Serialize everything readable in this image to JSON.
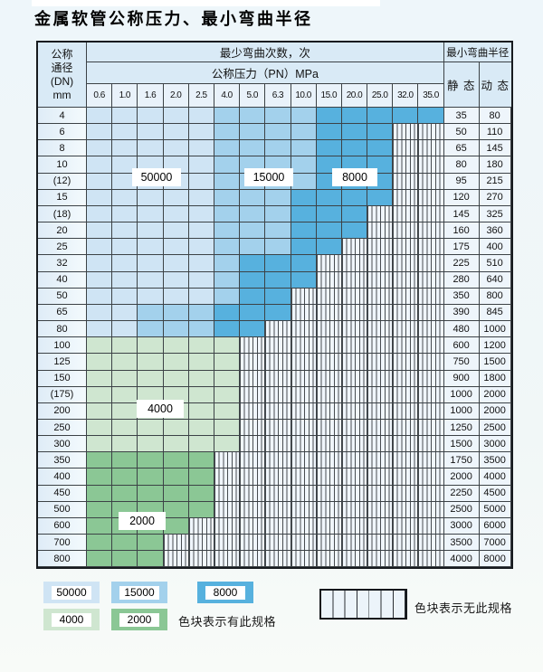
{
  "title": "金属软管公称压力、最小弯曲半径",
  "table": {
    "header": {
      "dn_lines": [
        "公称",
        "通径",
        "(DN)",
        "mm"
      ],
      "cycles": "最少弯曲次数，次",
      "pn": "公称压力（PN）MPa",
      "radius": "最小弯曲半径",
      "static": "静 态",
      "dynamic": "动 态",
      "pressures": [
        "0.6",
        "1.0",
        "1.6",
        "2.0",
        "2.5",
        "4.0",
        "5.0",
        "6.3",
        "10.0",
        "15.0",
        "20.0",
        "25.0",
        "32.0",
        "35.0"
      ]
    },
    "rows": [
      {
        "dn": "4",
        "spans": [
          [
            "50000",
            5
          ],
          [
            "15000",
            4
          ],
          [
            "8000",
            5
          ]
        ],
        "static": "35",
        "dynamic": "80"
      },
      {
        "dn": "6",
        "spans": [
          [
            "50000",
            5
          ],
          [
            "15000",
            4
          ],
          [
            "8000",
            3
          ],
          [
            "none",
            2
          ]
        ],
        "static": "50",
        "dynamic": "110"
      },
      {
        "dn": "8",
        "spans": [
          [
            "50000",
            5
          ],
          [
            "15000",
            4
          ],
          [
            "8000",
            3
          ],
          [
            "none",
            2
          ]
        ],
        "static": "65",
        "dynamic": "145"
      },
      {
        "dn": "10",
        "spans": [
          [
            "50000",
            5
          ],
          [
            "15000",
            4
          ],
          [
            "8000",
            3
          ],
          [
            "none",
            2
          ]
        ],
        "static": "80",
        "dynamic": "180"
      },
      {
        "dn": "(12)",
        "spans": [
          [
            "50000",
            5
          ],
          [
            "15000",
            4
          ],
          [
            "8000",
            3
          ],
          [
            "none",
            2
          ]
        ],
        "static": "95",
        "dynamic": "215"
      },
      {
        "dn": "15",
        "spans": [
          [
            "50000",
            5
          ],
          [
            "15000",
            3
          ],
          [
            "8000",
            4
          ],
          [
            "none",
            2
          ]
        ],
        "static": "120",
        "dynamic": "270"
      },
      {
        "dn": "(18)",
        "spans": [
          [
            "50000",
            5
          ],
          [
            "15000",
            3
          ],
          [
            "8000",
            3
          ],
          [
            "none",
            3
          ]
        ],
        "static": "145",
        "dynamic": "325"
      },
      {
        "dn": "20",
        "spans": [
          [
            "50000",
            5
          ],
          [
            "15000",
            3
          ],
          [
            "8000",
            3
          ],
          [
            "none",
            3
          ]
        ],
        "static": "160",
        "dynamic": "360"
      },
      {
        "dn": "25",
        "spans": [
          [
            "50000",
            5
          ],
          [
            "15000",
            3
          ],
          [
            "8000",
            2
          ],
          [
            "none",
            4
          ]
        ],
        "static": "175",
        "dynamic": "400"
      },
      {
        "dn": "32",
        "spans": [
          [
            "50000",
            5
          ],
          [
            "15000",
            1
          ],
          [
            "8000",
            3
          ],
          [
            "none",
            5
          ]
        ],
        "static": "225",
        "dynamic": "510"
      },
      {
        "dn": "40",
        "spans": [
          [
            "50000",
            5
          ],
          [
            "15000",
            1
          ],
          [
            "8000",
            3
          ],
          [
            "none",
            5
          ]
        ],
        "static": "280",
        "dynamic": "640"
      },
      {
        "dn": "50",
        "spans": [
          [
            "50000",
            5
          ],
          [
            "15000",
            1
          ],
          [
            "8000",
            2
          ],
          [
            "none",
            6
          ]
        ],
        "static": "350",
        "dynamic": "800"
      },
      {
        "dn": "65",
        "spans": [
          [
            "50000",
            2
          ],
          [
            "15000",
            3
          ],
          [
            "8000",
            3
          ],
          [
            "none",
            6
          ]
        ],
        "static": "390",
        "dynamic": "845"
      },
      {
        "dn": "80",
        "spans": [
          [
            "50000",
            2
          ],
          [
            "15000",
            3
          ],
          [
            "8000",
            2
          ],
          [
            "none",
            7
          ]
        ],
        "static": "480",
        "dynamic": "1000"
      },
      {
        "dn": "100",
        "spans": [
          [
            "4000",
            6
          ],
          [
            "none",
            8
          ]
        ],
        "static": "600",
        "dynamic": "1200"
      },
      {
        "dn": "125",
        "spans": [
          [
            "4000",
            6
          ],
          [
            "none",
            8
          ]
        ],
        "static": "750",
        "dynamic": "1500"
      },
      {
        "dn": "150",
        "spans": [
          [
            "4000",
            6
          ],
          [
            "none",
            8
          ]
        ],
        "static": "900",
        "dynamic": "1800"
      },
      {
        "dn": "(175)",
        "spans": [
          [
            "4000",
            6
          ],
          [
            "none",
            8
          ]
        ],
        "static": "1000",
        "dynamic": "2000"
      },
      {
        "dn": "200",
        "spans": [
          [
            "4000",
            6
          ],
          [
            "none",
            8
          ]
        ],
        "static": "1000",
        "dynamic": "2000"
      },
      {
        "dn": "250",
        "spans": [
          [
            "4000",
            6
          ],
          [
            "none",
            8
          ]
        ],
        "static": "1250",
        "dynamic": "2500"
      },
      {
        "dn": "300",
        "spans": [
          [
            "4000",
            6
          ],
          [
            "none",
            8
          ]
        ],
        "static": "1500",
        "dynamic": "3000"
      },
      {
        "dn": "350",
        "spans": [
          [
            "2000",
            5
          ],
          [
            "none",
            9
          ]
        ],
        "static": "1750",
        "dynamic": "3500"
      },
      {
        "dn": "400",
        "spans": [
          [
            "2000",
            5
          ],
          [
            "none",
            9
          ]
        ],
        "static": "2000",
        "dynamic": "4000"
      },
      {
        "dn": "450",
        "spans": [
          [
            "2000",
            5
          ],
          [
            "none",
            9
          ]
        ],
        "static": "2250",
        "dynamic": "4500"
      },
      {
        "dn": "500",
        "spans": [
          [
            "2000",
            5
          ],
          [
            "none",
            9
          ]
        ],
        "static": "2500",
        "dynamic": "5000"
      },
      {
        "dn": "600",
        "spans": [
          [
            "2000",
            4
          ],
          [
            "none",
            10
          ]
        ],
        "static": "3000",
        "dynamic": "6000"
      },
      {
        "dn": "700",
        "spans": [
          [
            "2000",
            3
          ],
          [
            "none",
            11
          ]
        ],
        "static": "3500",
        "dynamic": "7000"
      },
      {
        "dn": "800",
        "spans": [
          [
            "2000",
            3
          ],
          [
            "none",
            11
          ]
        ],
        "static": "4000",
        "dynamic": "8000"
      }
    ]
  },
  "overlay_labels": {
    "b50000": "50000",
    "b15000": "15000",
    "b8000": "8000",
    "b4000": "4000",
    "b2000": "2000"
  },
  "colors": {
    "50000": "#cfe4f4",
    "15000": "#a3d1ec",
    "8000": "#57b1de",
    "4000": "#cfe6d0",
    "2000": "#8bc795"
  },
  "legend": {
    "swatches": [
      {
        "label": "50000",
        "color": "#cfe4f4"
      },
      {
        "label": "15000",
        "color": "#a3d1ec"
      },
      {
        "label": "8000",
        "color": "#57b1de"
      },
      {
        "label": "4000",
        "color": "#cfe6d0"
      },
      {
        "label": "2000",
        "color": "#8bc795"
      }
    ],
    "available_note": "色块表示有此规格",
    "unavailable_note": "色块表示无此规格"
  }
}
